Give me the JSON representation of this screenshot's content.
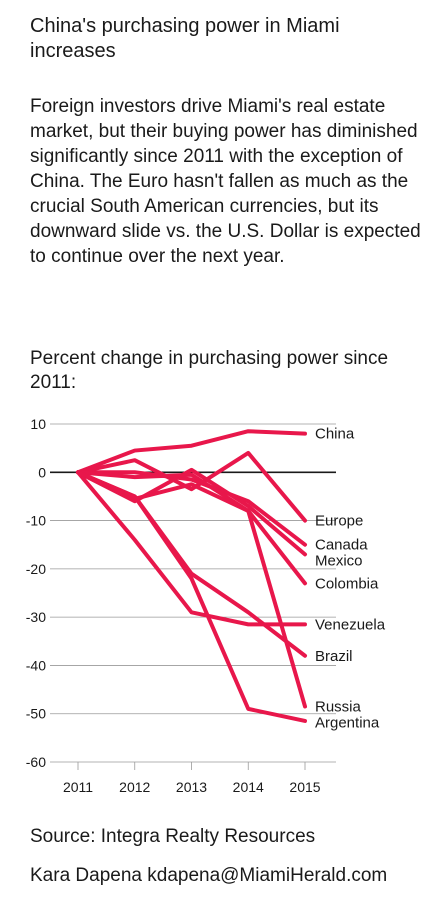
{
  "title": "China's purchasing power in Miami increases",
  "description": "Foreign investors drive Miami's real estate market, but their buying power has diminished significantly since 2011 with the exception of China. The Euro hasn't fallen as much as the crucial South American currencies, but its downward slide vs. the U.S. Dollar is expected to continue over the next year.",
  "source": "Source: Integra Realty Resources",
  "credit": "Kara Dapena kdapena@MiamiHerald.com",
  "chart_data": {
    "type": "line",
    "title": "Percent change in purchasing power since 2011:",
    "xlabel": "",
    "ylabel": "",
    "x": [
      2011,
      2012,
      2013,
      2014,
      2015
    ],
    "xlim": [
      2011,
      2015
    ],
    "ylim": [
      -60,
      10
    ],
    "yticks": [
      10,
      0,
      -10,
      -20,
      -30,
      -40,
      -50,
      -60
    ],
    "grid": true,
    "zero_line": true,
    "line_color": "#e8174b",
    "series": [
      {
        "name": "China",
        "values": [
          0,
          4.5,
          5.5,
          8.5,
          8
        ]
      },
      {
        "name": "Europe",
        "values": [
          0,
          2.5,
          -3.5,
          4,
          -10
        ]
      },
      {
        "name": "Canada",
        "values": [
          0,
          0,
          -1.5,
          -6,
          -15
        ]
      },
      {
        "name": "Mexico",
        "values": [
          0,
          -6,
          0.5,
          -7,
          -17
        ]
      },
      {
        "name": "Colombia",
        "values": [
          0,
          -5.5,
          -2.5,
          -8,
          -23
        ]
      },
      {
        "name": "Venezuela",
        "values": [
          0,
          -14,
          -29,
          -31.5,
          -31.5
        ]
      },
      {
        "name": "Brazil",
        "values": [
          0,
          -5,
          -21,
          -29,
          -38
        ]
      },
      {
        "name": "Russia",
        "values": [
          0,
          -1,
          -0.5,
          -8,
          -48.5
        ]
      },
      {
        "name": "Argentina",
        "values": [
          0,
          -5,
          -22,
          -49,
          -51.5
        ]
      }
    ]
  }
}
